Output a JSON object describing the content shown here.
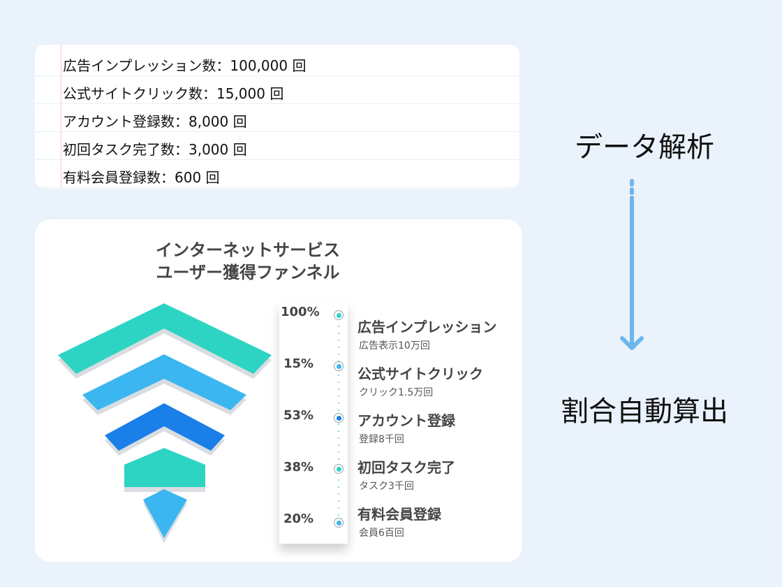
{
  "metrics": [
    {
      "label": "広告インプレッション数：100,000 回"
    },
    {
      "label": "公式サイトクリック数：15,000 回"
    },
    {
      "label": "アカウント登録数：8,000 回"
    },
    {
      "label": "初回タスク完了数：3,000 回"
    },
    {
      "label": "有料会員登録数：600 回"
    }
  ],
  "flow": {
    "top_label": "データ解析",
    "bottom_label": "割合自動算出"
  },
  "funnel": {
    "title_line1": "インターネットサービス",
    "title_line2": "ユーザー獲得ファンネル",
    "steps": [
      {
        "pct": "100%",
        "title": "広告インプレッション",
        "sub": "広告表示10万回",
        "color": "#2dd4c3"
      },
      {
        "pct": "15%",
        "title": "公式サイトクリック",
        "sub": "クリック1.5万回",
        "color": "#3bb6f0"
      },
      {
        "pct": "53%",
        "title": "アカウント登録",
        "sub": "登録8千回",
        "color": "#1a7fe8"
      },
      {
        "pct": "38%",
        "title": "初回タスク完了",
        "sub": "タスク3千回",
        "color": "#2dd4c3"
      },
      {
        "pct": "20%",
        "title": "有料会員登録",
        "sub": "会員6百回",
        "color": "#3bb6f0"
      }
    ]
  },
  "colors": {
    "background": "#eaf2fb",
    "arrow": "#6cb7ec",
    "teal": "#2dd4c3",
    "sky": "#3bb6f0",
    "blue": "#1a7fe8"
  }
}
